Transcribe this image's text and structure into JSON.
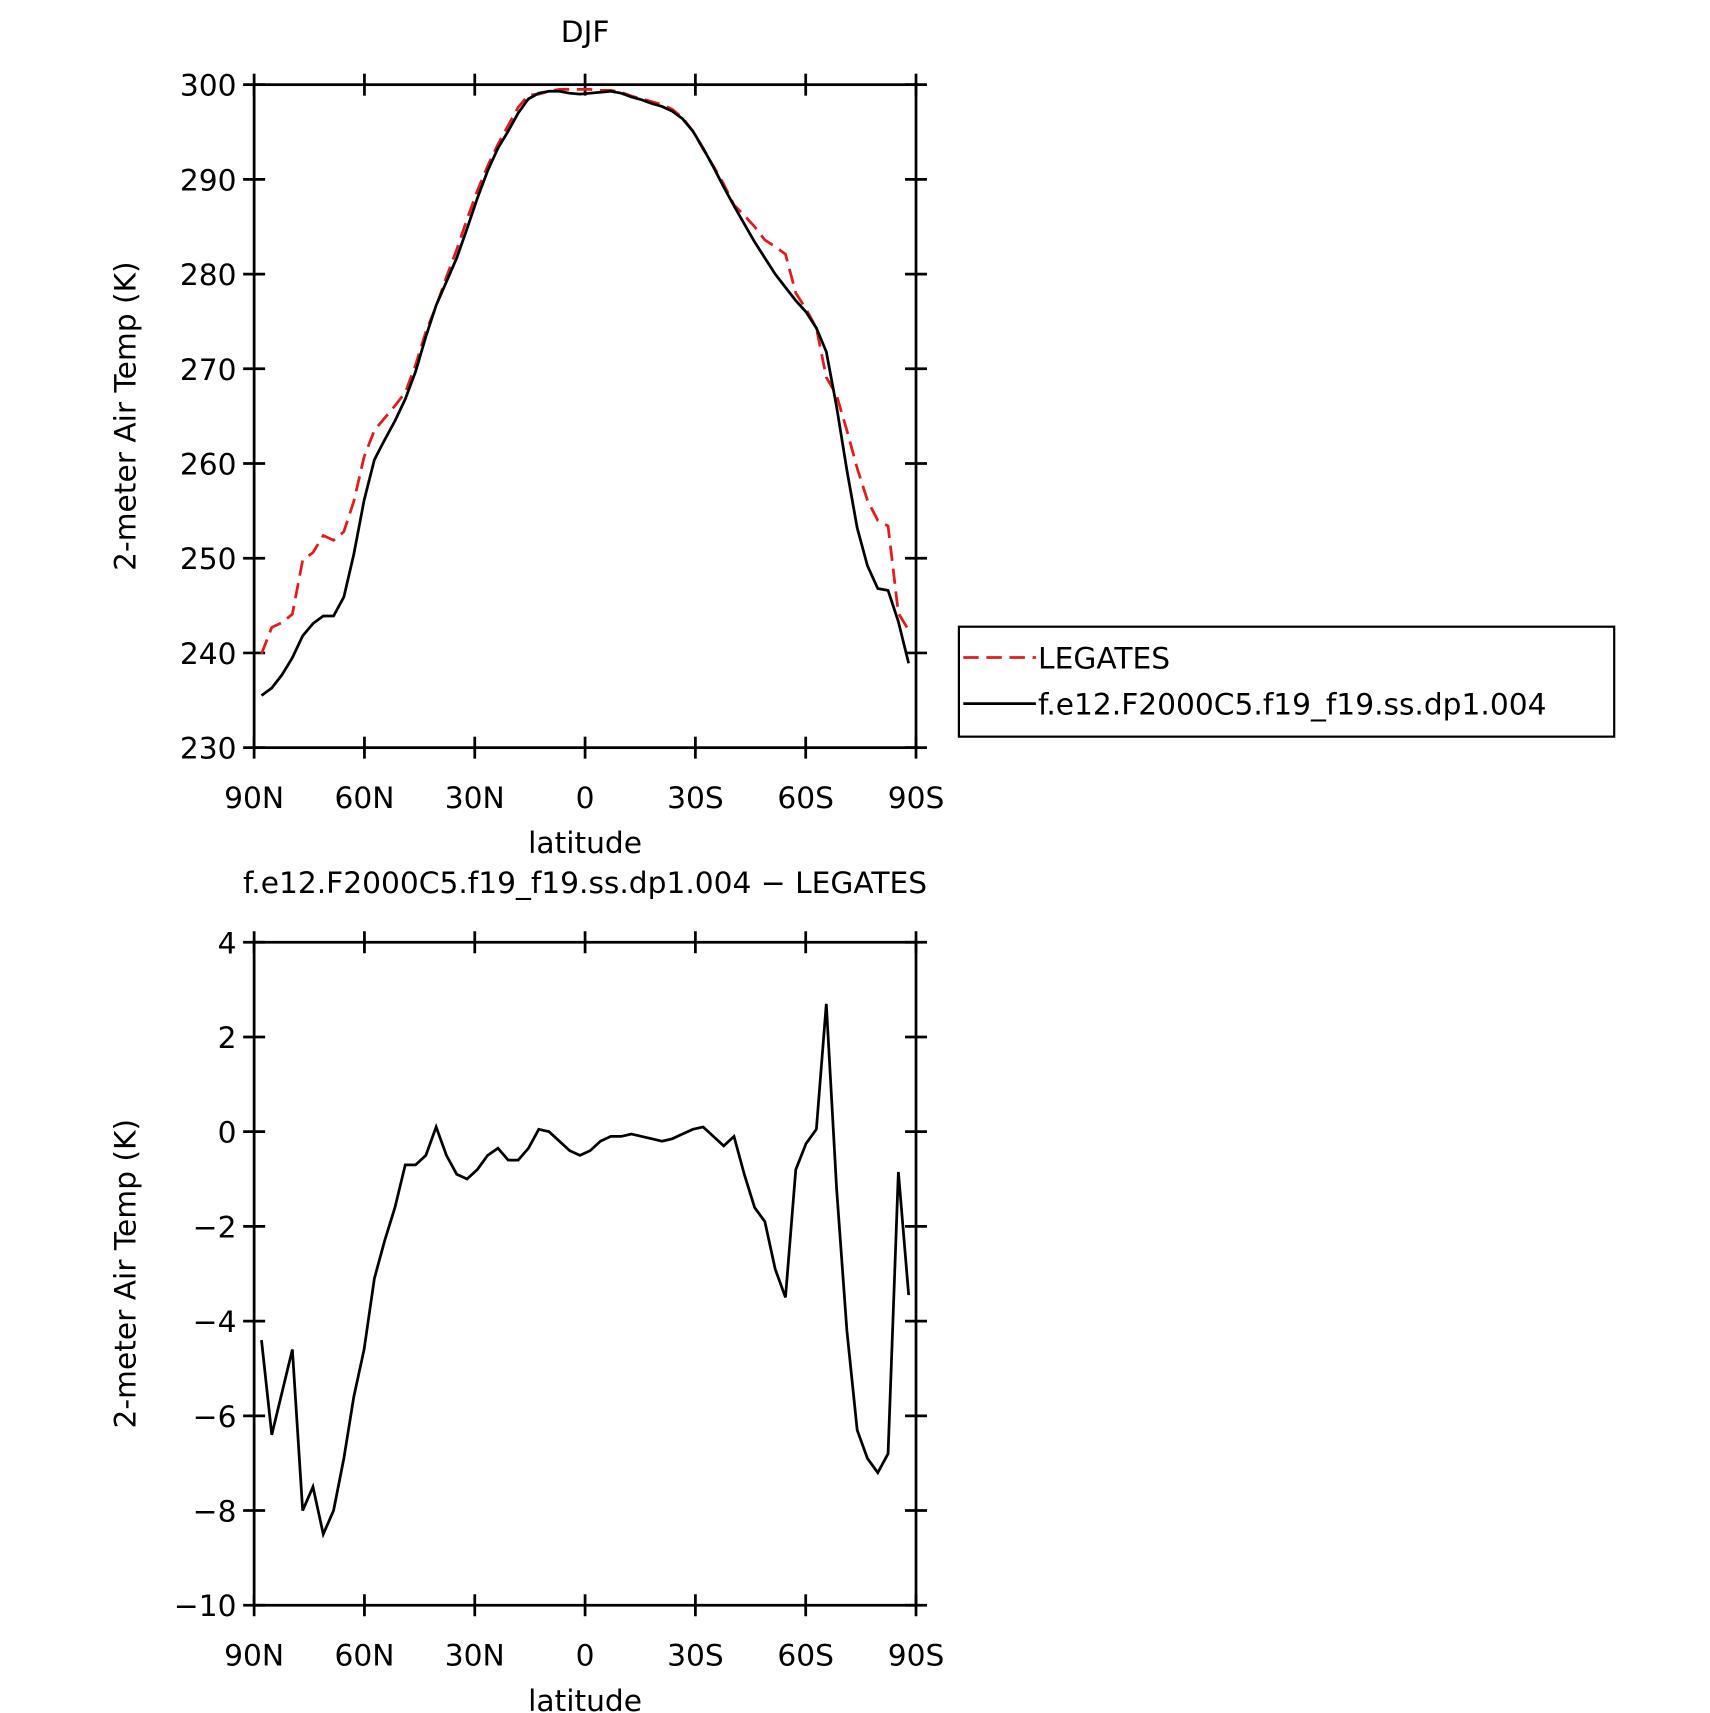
{
  "chart_data": [
    {
      "type": "line",
      "title": "DJF",
      "xlabel": "latitude",
      "ylabel": "2-meter Air Temp (K)",
      "x": [
        88.0,
        85.2,
        82.4,
        79.6,
        76.8,
        74.0,
        71.2,
        68.4,
        65.6,
        62.9,
        60.1,
        57.3,
        54.5,
        51.7,
        48.9,
        46.1,
        43.3,
        40.5,
        37.7,
        34.9,
        32.1,
        29.3,
        26.5,
        23.7,
        20.9,
        18.2,
        15.4,
        12.6,
        9.8,
        7.0,
        4.2,
        1.4,
        -1.4,
        -4.2,
        -7.0,
        -9.8,
        -12.6,
        -15.4,
        -18.2,
        -20.9,
        -23.7,
        -26.5,
        -29.3,
        -32.1,
        -34.9,
        -37.7,
        -40.5,
        -43.3,
        -46.1,
        -48.9,
        -51.7,
        -54.5,
        -57.3,
        -60.1,
        -62.9,
        -65.6,
        -68.4,
        -71.2,
        -74.0,
        -76.8,
        -79.6,
        -82.4,
        -85.2,
        -88.0
      ],
      "series": [
        {
          "name": "LEGATES",
          "color": "#e41a1c",
          "dash": "dashed",
          "values": [
            239.9,
            242.7,
            243.2,
            244.1,
            249.8,
            250.6,
            252.4,
            251.9,
            252.8,
            256.0,
            260.7,
            263.5,
            264.8,
            266.1,
            267.5,
            270.4,
            273.9,
            276.6,
            279.7,
            282.6,
            285.8,
            288.8,
            291.4,
            293.7,
            295.7,
            297.6,
            298.9,
            299.0,
            299.3,
            299.5,
            299.5,
            299.5,
            299.5,
            299.4,
            299.4,
            299.2,
            298.8,
            298.5,
            298.2,
            297.9,
            297.4,
            296.5,
            295.1,
            293.2,
            291.4,
            289.5,
            287.3,
            286.2,
            285.0,
            283.6,
            282.9,
            282.1,
            278.0,
            276.3,
            274.3,
            269.1,
            267.2,
            263.5,
            259.5,
            256.1,
            254.0,
            253.4,
            244.2,
            242.4
          ]
        },
        {
          "name": "f.e12.F2000C5.f19_f19.ss.dp1.004",
          "color": "#000000",
          "dash": "solid",
          "values": [
            235.5,
            236.3,
            237.7,
            239.5,
            241.8,
            243.1,
            243.9,
            243.9,
            245.9,
            250.4,
            256.1,
            260.4,
            262.5,
            264.5,
            266.8,
            269.7,
            273.4,
            276.7,
            279.2,
            281.7,
            284.8,
            288.0,
            290.9,
            293.3,
            295.1,
            297.0,
            298.5,
            299.1,
            299.3,
            299.3,
            299.1,
            299.0,
            299.1,
            299.2,
            299.3,
            299.1,
            298.7,
            298.4,
            298.0,
            297.7,
            297.2,
            296.4,
            295.1,
            293.3,
            291.3,
            289.2,
            287.2,
            285.3,
            283.4,
            281.7,
            280.0,
            278.6,
            277.2,
            276.0,
            274.3,
            271.8,
            266.0,
            259.3,
            253.2,
            249.2,
            246.8,
            246.6,
            243.3,
            238.9
          ]
        }
      ],
      "xlim": [
        90,
        -90
      ],
      "xticks": [
        {
          "value": 90,
          "label": "90N"
        },
        {
          "value": 60,
          "label": "60N"
        },
        {
          "value": 30,
          "label": "30N"
        },
        0,
        {
          "value": -30,
          "label": "30S"
        },
        {
          "value": -60,
          "label": "60S"
        },
        {
          "value": -90,
          "label": "90S"
        }
      ],
      "ylim": [
        230,
        300
      ],
      "yticks": [
        230,
        240,
        250,
        260,
        270,
        280,
        290,
        300
      ],
      "legend": "right"
    },
    {
      "type": "line",
      "title": "f.e12.F2000C5.f19_f19.ss.dp1.004 − LEGATES",
      "xlabel": "latitude",
      "ylabel": "2-meter Air Temp (K)",
      "x": [
        88.0,
        85.2,
        82.4,
        79.6,
        76.8,
        74.0,
        71.2,
        68.4,
        65.6,
        62.9,
        60.1,
        57.3,
        54.5,
        51.7,
        48.9,
        46.1,
        43.3,
        40.5,
        37.7,
        34.9,
        32.1,
        29.3,
        26.5,
        23.7,
        20.9,
        18.2,
        15.4,
        12.6,
        9.8,
        7.0,
        4.2,
        1.4,
        -1.4,
        -4.2,
        -7.0,
        -9.8,
        -12.6,
        -15.4,
        -18.2,
        -20.9,
        -23.7,
        -26.5,
        -29.3,
        -32.1,
        -34.9,
        -37.7,
        -40.5,
        -43.3,
        -46.1,
        -48.9,
        -51.7,
        -54.5,
        -57.3,
        -60.1,
        -62.9,
        -65.6,
        -68.4,
        -71.2,
        -74.0,
        -76.8,
        -79.6,
        -82.4,
        -85.2,
        -88.0
      ],
      "values": [
        -4.4,
        -6.4,
        -5.5,
        -4.6,
        -8.0,
        -7.5,
        -8.5,
        -8.0,
        -6.9,
        -5.6,
        -4.6,
        -3.1,
        -2.3,
        -1.6,
        -0.7,
        -0.7,
        -0.5,
        0.1,
        -0.5,
        -0.9,
        -1.0,
        -0.8,
        -0.5,
        -0.35,
        -0.6,
        -0.6,
        -0.35,
        0.05,
        0.0,
        -0.2,
        -0.4,
        -0.5,
        -0.4,
        -0.2,
        -0.1,
        -0.1,
        -0.05,
        -0.1,
        -0.15,
        -0.2,
        -0.15,
        -0.05,
        0.05,
        0.1,
        -0.1,
        -0.3,
        -0.1,
        -0.9,
        -1.6,
        -1.9,
        -2.9,
        -3.5,
        -0.8,
        -0.25,
        0.05,
        2.7,
        -1.2,
        -4.2,
        -6.3,
        -6.9,
        -7.2,
        -6.8,
        -0.85,
        -3.45
      ],
      "color": "#000000",
      "dash": "solid",
      "xlim": [
        90,
        -90
      ],
      "xticks": [
        {
          "value": 90,
          "label": "90N"
        },
        {
          "value": 60,
          "label": "60N"
        },
        {
          "value": 30,
          "label": "30N"
        },
        0,
        {
          "value": -30,
          "label": "30S"
        },
        {
          "value": -60,
          "label": "60S"
        },
        {
          "value": -90,
          "label": "90S"
        }
      ],
      "ylim": [
        -10,
        4
      ],
      "yticks": [
        {
          "value": -10,
          "label": "−10"
        },
        {
          "value": -8,
          "label": "−8"
        },
        {
          "value": -6,
          "label": "−6"
        },
        {
          "value": -4,
          "label": "−4"
        },
        {
          "value": -2,
          "label": "−2"
        },
        0,
        2,
        4
      ]
    }
  ]
}
